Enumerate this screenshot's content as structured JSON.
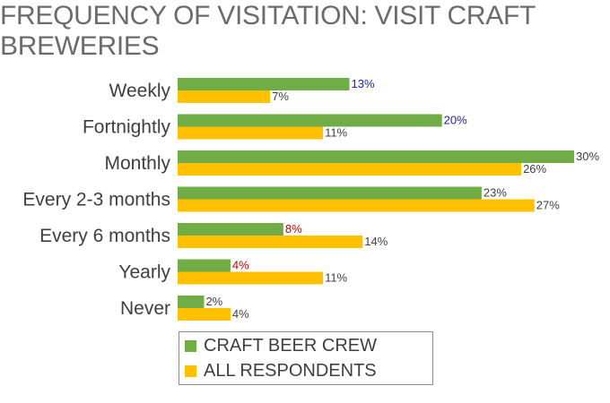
{
  "title": "FREQUENCY OF VISITATION: VISIT CRAFT BREWERIES",
  "chart_data": {
    "type": "bar",
    "orientation": "horizontal",
    "categories": [
      "Weekly",
      "Fortnightly",
      "Monthly",
      "Every 2-3 months",
      "Every 6 months",
      "Yearly",
      "Never"
    ],
    "series": [
      {
        "name": "CRAFT BEER CREW",
        "color": "#70ad47",
        "values": [
          13,
          20,
          30,
          23,
          8,
          4,
          2
        ],
        "labels": [
          "13%",
          "20%",
          "30%",
          "23%",
          "8%",
          "4%",
          "2%"
        ],
        "label_colors": [
          "#1f1fa8",
          "#1f1fa8",
          "#404040",
          "#404040",
          "#c00000",
          "#c00000",
          "#404040"
        ]
      },
      {
        "name": "ALL RESPONDENTS",
        "color": "#ffc000",
        "values": [
          7,
          11,
          26,
          27,
          14,
          11,
          4
        ],
        "labels": [
          "7%",
          "11%",
          "26%",
          "27%",
          "14%",
          "11%",
          "4%"
        ],
        "label_colors": [
          "#404040",
          "#404040",
          "#404040",
          "#404040",
          "#404040",
          "#404040",
          "#404040"
        ]
      }
    ],
    "xlim": [
      0,
      30
    ],
    "grid": false,
    "legend_position": "bottom"
  }
}
